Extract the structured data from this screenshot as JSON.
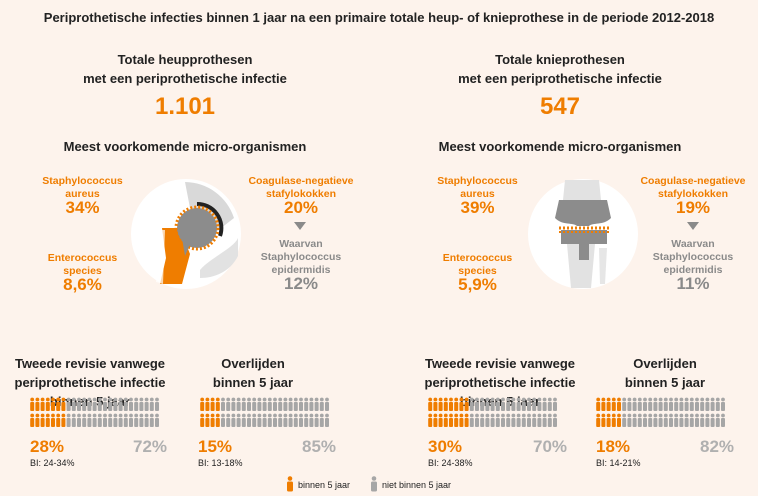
{
  "title": "Periprothetische infecties binnen 1 jaar na een primaire totale heup- of knieprothese in de periode 2012-2018",
  "colors": {
    "accent": "#ef7d00",
    "grey": "#a6a6a6",
    "background": "#fdf3ec"
  },
  "hip": {
    "heading_line1": "Totale heupprothesen",
    "heading_line2": "met een periprothetische infectie",
    "total": "1.101",
    "micro_title": "Meest voorkomende micro-organismen",
    "staph_label_1": "Staphylococcus",
    "staph_label_2": "aureus",
    "staph_pct": "34%",
    "coag_label_1": "Coagulase-negatieve",
    "coag_label_2": "stafylokokken",
    "coag_pct": "20%",
    "entero_label_1": "Enterococcus",
    "entero_label_2": "species",
    "entero_pct": "8,6%",
    "sub_label_1": "Waarvan",
    "sub_label_2": "Staphylococcus",
    "sub_label_3": "epidermidis",
    "sub_pct": "12%",
    "revision_title_1": "Tweede revisie vanwege",
    "revision_title_2": "periprothetische infectie",
    "revision_title_3": "binnen 5 jaar",
    "revision_pct": "28%",
    "revision_rest": "72%",
    "revision_ci": "BI: 24-34%",
    "revision_fraction": 0.28,
    "death_title_1": "Overlijden",
    "death_title_2": "binnen 5 jaar",
    "death_pct": "15%",
    "death_rest": "85%",
    "death_ci": "BI: 13-18%",
    "death_fraction": 0.15
  },
  "knee": {
    "heading_line1": "Totale knieprothesen",
    "heading_line2": "met een periprothetische infectie",
    "total": "547",
    "micro_title": "Meest voorkomende micro-organismen",
    "staph_label_1": "Staphylococcus",
    "staph_label_2": "aureus",
    "staph_pct": "39%",
    "coag_label_1": "Coagulase-negatieve",
    "coag_label_2": "stafylokokken",
    "coag_pct": "19%",
    "entero_label_1": "Enterococcus",
    "entero_label_2": "species",
    "entero_pct": "5,9%",
    "sub_label_1": "Waarvan",
    "sub_label_2": "Staphylococcus",
    "sub_label_3": "epidermidis",
    "sub_pct": "11%",
    "revision_title_1": "Tweede revisie vanwege",
    "revision_title_2": "periprothetische infectie",
    "revision_title_3": "binnen 5 jaar",
    "revision_pct": "30%",
    "revision_rest": "70%",
    "revision_ci": "BI: 24-38%",
    "revision_fraction": 0.3,
    "death_title_1": "Overlijden",
    "death_title_2": "binnen 5 jaar",
    "death_pct": "18%",
    "death_rest": "82%",
    "death_ci": "BI: 14-21%",
    "death_fraction": 0.18
  },
  "legend": {
    "within_label": "binnen 5 jaar",
    "not_within_label": "niet binnen 5 jaar",
    "within_icon": "person-icon",
    "not_within_icon": "person-icon"
  }
}
